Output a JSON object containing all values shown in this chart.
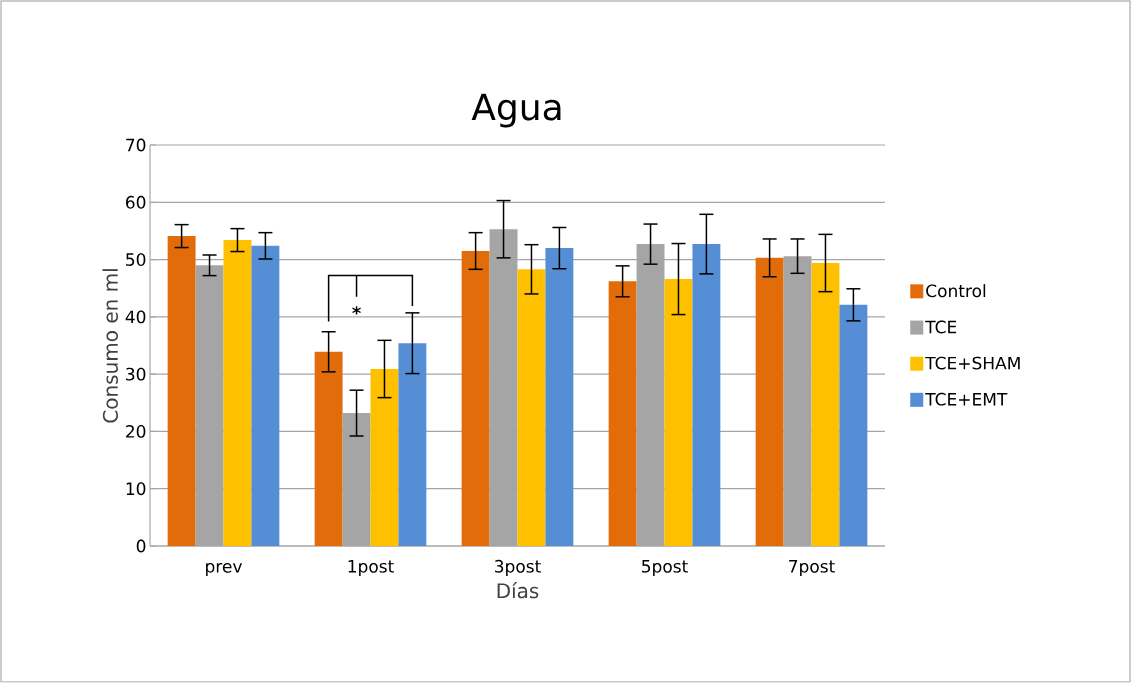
{
  "chart_data": {
    "type": "bar",
    "title": "Agua",
    "xlabel": "Días",
    "ylabel": "Consumo en ml",
    "categories": [
      "prev",
      "1post",
      "3post",
      "5post",
      "7post"
    ],
    "series": [
      {
        "name": "Control",
        "color": "#e36c0a",
        "values": [
          54.1,
          33.9,
          51.5,
          46.2,
          50.3
        ],
        "errors": [
          2,
          3.5,
          3.2,
          2.7,
          3.3
        ]
      },
      {
        "name": "TCE",
        "color": "#a5a5a5",
        "values": [
          49.0,
          23.2,
          55.3,
          52.7,
          50.6
        ],
        "errors": [
          1.8,
          4,
          5,
          3.5,
          3
        ]
      },
      {
        "name": "TCE+SHAM",
        "color": "#ffc000",
        "values": [
          53.4,
          30.9,
          48.3,
          46.6,
          49.4
        ],
        "errors": [
          2,
          5,
          4.3,
          6.2,
          5
        ]
      },
      {
        "name": "TCE+EMT",
        "color": "#558ed5",
        "values": [
          52.4,
          35.4,
          52.0,
          52.7,
          42.1
        ],
        "errors": [
          2.3,
          5.3,
          3.6,
          5.2,
          2.8
        ]
      }
    ],
    "ylim": [
      0,
      70
    ],
    "yticks": [
      0,
      10,
      20,
      30,
      40,
      50,
      60,
      70
    ],
    "grid": "y",
    "legend": "right",
    "annotations": [
      "*"
    ]
  }
}
